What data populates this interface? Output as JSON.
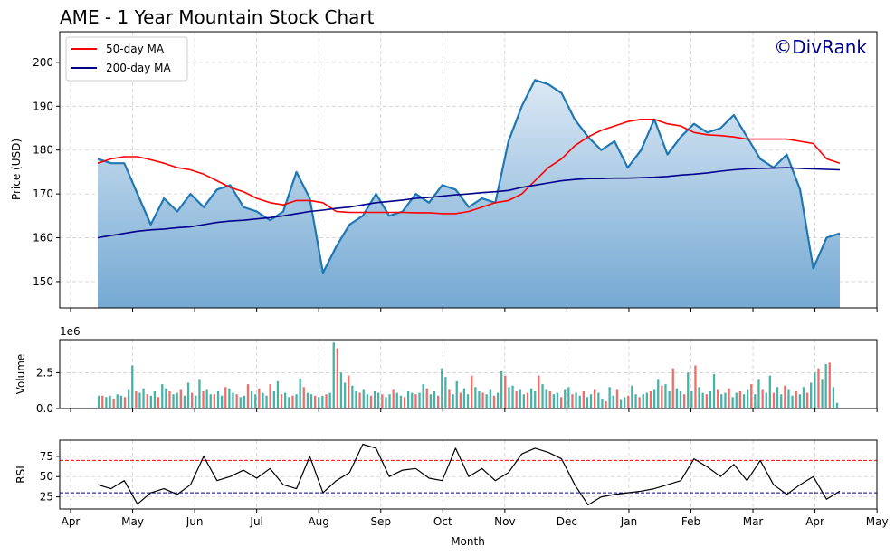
{
  "title": "AME - 1 Year Mountain Stock Chart",
  "watermark": "©DivRank",
  "xlabel": "Month",
  "months": [
    "Apr",
    "May",
    "Jun",
    "Jul",
    "Aug",
    "Sep",
    "Oct",
    "Nov",
    "Dec",
    "Jan",
    "Feb",
    "Mar",
    "Apr",
    "May"
  ],
  "colors": {
    "price_line": "#1f77b4",
    "ma50": "#ff0000",
    "ma200": "#00008b",
    "volume_up": "#26a69a",
    "volume_down": "#ef5350",
    "rsi_line": "#000000",
    "overbought": "#ff0000",
    "oversold": "#00008b",
    "watermark": "#00008b"
  },
  "chart_data": [
    {
      "type": "line",
      "panel": "price",
      "ylabel": "Price (USD)",
      "ylim": [
        144,
        207
      ],
      "yticks": [
        150,
        160,
        170,
        180,
        190,
        200
      ],
      "grid": true,
      "legend_position": "top-left",
      "legend": [
        "50-day MA",
        "200-day MA"
      ],
      "x": [
        "Apr 15",
        "Apr 20",
        "Apr 25",
        "May 1",
        "May 8",
        "May 15",
        "May 22",
        "May 29",
        "Jun 5",
        "Jun 12",
        "Jun 19",
        "Jun 26",
        "Jul 3",
        "Jul 10",
        "Jul 17",
        "Jul 24",
        "Jul 31",
        "Aug 1",
        "Aug 7",
        "Aug 14",
        "Aug 21",
        "Aug 28",
        "Sep 4",
        "Sep 11",
        "Sep 18",
        "Sep 25",
        "Oct 2",
        "Oct 9",
        "Oct 16",
        "Oct 23",
        "Oct 30",
        "Nov 1",
        "Nov 6",
        "Nov 13",
        "Nov 20",
        "Nov 27",
        "Dec 4",
        "Dec 11",
        "Dec 18",
        "Dec 25",
        "Jan 1",
        "Jan 8",
        "Jan 15",
        "Jan 22",
        "Jan 29",
        "Feb 5",
        "Feb 12",
        "Feb 19",
        "Feb 26",
        "Mar 4",
        "Mar 11",
        "Mar 18",
        "Mar 25",
        "Apr 1",
        "Apr 4",
        "Apr 8",
        "Apr 14"
      ],
      "series": [
        {
          "role": "price",
          "values": [
            178,
            177,
            177,
            170,
            163,
            169,
            166,
            170,
            167,
            171,
            172,
            167,
            166,
            164,
            166,
            175,
            169,
            152,
            158,
            163,
            165,
            170,
            165,
            166,
            170,
            168,
            172,
            171,
            167,
            169,
            168,
            182,
            190,
            196,
            195,
            193,
            187,
            183,
            180,
            182,
            176,
            180,
            187,
            179,
            183,
            186,
            184,
            185,
            188,
            183,
            178,
            176,
            179,
            171,
            153,
            160,
            161
          ]
        },
        {
          "name": "50-day MA",
          "values": [
            177,
            178,
            178.5,
            178.5,
            177.8,
            177,
            176,
            175.5,
            174.5,
            173,
            171.5,
            170.5,
            169,
            168,
            167.5,
            168.5,
            168.5,
            168,
            166,
            165.8,
            165.8,
            165.8,
            165.8,
            165.8,
            165.7,
            165.7,
            165.5,
            165.5,
            166,
            167,
            168,
            168.5,
            170,
            173,
            176,
            178,
            181,
            183,
            184.5,
            185.5,
            186.5,
            187,
            187,
            186,
            185.5,
            184,
            183.5,
            183.3,
            183,
            182.5,
            182.5,
            182.5,
            182.5,
            182,
            181.5,
            178,
            177
          ]
        },
        {
          "name": "200-day MA",
          "values": [
            160,
            160.5,
            161,
            161.5,
            161.8,
            162,
            162.3,
            162.5,
            163,
            163.5,
            163.8,
            164,
            164.3,
            164.6,
            165,
            165.5,
            166,
            166.3,
            166.7,
            167,
            167.5,
            168,
            168.3,
            168.6,
            169,
            169.2,
            169.5,
            169.8,
            170,
            170.3,
            170.5,
            170.8,
            171.5,
            172,
            172.5,
            173,
            173.3,
            173.5,
            173.5,
            173.6,
            173.6,
            173.7,
            173.8,
            174,
            174.3,
            174.5,
            174.8,
            175.2,
            175.5,
            175.7,
            175.8,
            175.9,
            176,
            175.8,
            175.7,
            175.6,
            175.5
          ]
        }
      ]
    },
    {
      "type": "bar",
      "panel": "volume",
      "ylabel": "Volume",
      "scale_label": "1e6",
      "ylim": [
        0,
        4.8
      ],
      "yticks": [
        "0.0",
        "2.5"
      ],
      "grid": true,
      "unit_multiplier": 1000000,
      "values_millions": [
        0.9,
        0.9,
        0.8,
        0.9,
        0.7,
        1.0,
        0.9,
        0.8,
        1.3,
        3.0,
        1.2,
        1.1,
        1.4,
        1.0,
        0.9,
        1.2,
        0.8,
        1.7,
        1.4,
        1.2,
        1.0,
        1.1,
        1.3,
        0.9,
        1.8,
        1.1,
        0.9,
        2.0,
        1.2,
        1.3,
        1.0,
        1.0,
        1.2,
        0.9,
        1.5,
        1.4,
        1.1,
        1.0,
        0.8,
        0.9,
        1.7,
        1.2,
        1.0,
        1.4,
        1.1,
        0.9,
        1.7,
        1.2,
        1.9,
        1.0,
        1.1,
        0.8,
        0.9,
        1.0,
        2.1,
        1.5,
        1.1,
        1.0,
        0.9,
        0.8,
        0.9,
        1.0,
        1.1,
        4.6,
        4.2,
        2.5,
        1.8,
        2.3,
        1.6,
        1.2,
        1.1,
        1.3,
        1.0,
        0.9,
        1.2,
        1.1,
        1.0,
        0.8,
        1.0,
        1.3,
        1.1,
        0.9,
        0.8,
        1.2,
        1.1,
        1.0,
        1.1,
        1.7,
        1.4,
        1.0,
        1.2,
        0.9,
        2.8,
        2.2,
        1.3,
        1.0,
        1.9,
        1.1,
        1.4,
        1.0,
        2.3,
        1.5,
        1.2,
        1.1,
        1.0,
        1.3,
        0.9,
        1.1,
        2.6,
        2.3,
        1.5,
        1.6,
        1.2,
        1.3,
        1.0,
        1.1,
        1.4,
        1.2,
        2.3,
        1.7,
        1.3,
        1.2,
        1.0,
        1.1,
        0.8,
        1.3,
        1.5,
        1.0,
        1.1,
        0.9,
        1.2,
        0.8,
        1.0,
        1.3,
        1.1,
        0.7,
        0.5,
        1.5,
        0.9,
        1.3,
        0.6,
        0.8,
        0.9,
        1.6,
        1.0,
        0.8,
        1.0,
        1.1,
        1.2,
        1.3,
        2.0,
        1.6,
        1.7,
        1.2,
        2.8,
        1.4,
        1.2,
        1.0,
        2.5,
        1.2,
        3.0,
        1.5,
        1.1,
        1.0,
        1.2,
        2.4,
        1.3,
        1.0,
        1.1,
        1.4,
        0.8,
        1.1,
        1.2,
        1.0,
        1.3,
        1.7,
        1.0,
        2.0,
        1.3,
        1.1,
        2.3,
        1.1,
        1.5,
        1.0,
        1.6,
        1.3,
        0.9,
        1.2,
        1.0,
        1.5,
        1.1,
        1.8,
        2.5,
        2.8,
        2.0,
        3.1,
        3.2,
        1.5,
        0.4
      ],
      "colors_up_down": "alternating"
    },
    {
      "type": "line",
      "panel": "rsi",
      "ylabel": "RSI",
      "ylim": [
        10,
        95
      ],
      "yticks": [
        25,
        50,
        75
      ],
      "grid": true,
      "reference_lines": [
        70,
        30
      ],
      "x": [
        "Apr 15",
        "Apr 20",
        "Apr 25",
        "May 1",
        "May 8",
        "May 15",
        "May 22",
        "May 29",
        "Jun 5",
        "Jun 12",
        "Jun 19",
        "Jun 26",
        "Jul 3",
        "Jul 10",
        "Jul 17",
        "Jul 24",
        "Jul 31",
        "Aug 1",
        "Aug 7",
        "Aug 14",
        "Aug 21",
        "Aug 28",
        "Sep 4",
        "Sep 11",
        "Sep 18",
        "Sep 25",
        "Oct 2",
        "Oct 9",
        "Oct 16",
        "Oct 23",
        "Oct 30",
        "Nov 1",
        "Nov 6",
        "Nov 13",
        "Nov 20",
        "Nov 27",
        "Dec 4",
        "Dec 11",
        "Dec 18",
        "Dec 25",
        "Jan 1",
        "Jan 8",
        "Jan 15",
        "Jan 22",
        "Jan 29",
        "Feb 5",
        "Feb 12",
        "Feb 19",
        "Feb 26",
        "Mar 4",
        "Mar 11",
        "Mar 18",
        "Mar 25",
        "Apr 1",
        "Apr 4",
        "Apr 8",
        "Apr 14"
      ],
      "values": [
        40,
        35,
        45,
        16,
        30,
        35,
        28,
        40,
        75,
        45,
        50,
        58,
        48,
        60,
        40,
        35,
        75,
        30,
        45,
        55,
        90,
        85,
        50,
        58,
        60,
        48,
        45,
        85,
        50,
        60,
        45,
        55,
        78,
        85,
        80,
        72,
        40,
        15,
        25,
        28,
        30,
        32,
        35,
        40,
        45,
        72,
        62,
        50,
        65,
        45,
        70,
        40,
        28,
        40,
        50,
        22,
        32
      ]
    }
  ]
}
